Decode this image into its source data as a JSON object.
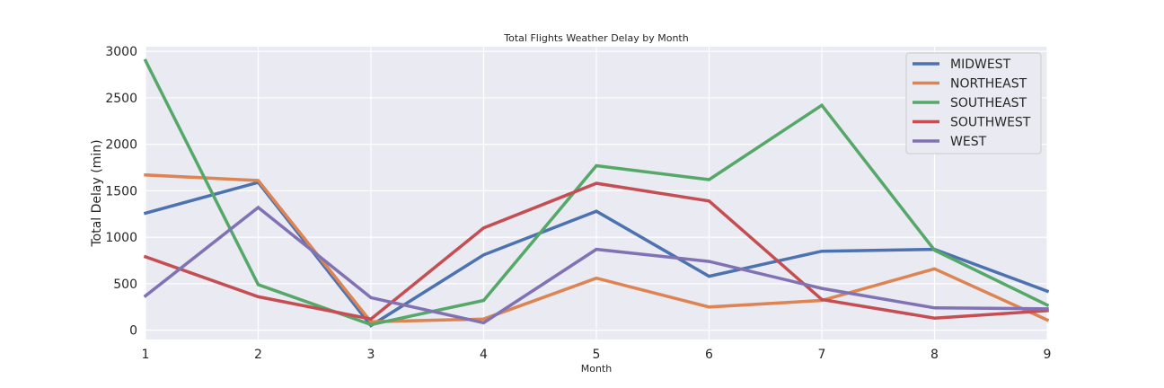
{
  "chart_data": {
    "type": "line",
    "title": "Total Flights Weather Delay by Month",
    "xlabel": "Month",
    "ylabel": "Total Delay (min)",
    "x": [
      1,
      2,
      3,
      4,
      5,
      6,
      7,
      8,
      9
    ],
    "xlim": [
      1,
      9
    ],
    "ylim": [
      -100,
      3050
    ],
    "yticks": [
      0,
      500,
      1000,
      1500,
      2000,
      2500,
      3000
    ],
    "grid": true,
    "legend_position": "top-right",
    "series": [
      {
        "name": "MIDWEST",
        "color": "#4c72b0",
        "values": [
          1260,
          1590,
          50,
          810,
          1280,
          580,
          850,
          870,
          420
        ]
      },
      {
        "name": "NORTHEAST",
        "color": "#dd8452",
        "values": [
          1670,
          1610,
          90,
          120,
          560,
          250,
          320,
          660,
          110
        ]
      },
      {
        "name": "SOUTHEAST",
        "color": "#55a868",
        "values": [
          2900,
          490,
          60,
          320,
          1770,
          1620,
          2420,
          860,
          270
        ]
      },
      {
        "name": "SOUTHWEST",
        "color": "#c44e52",
        "values": [
          790,
          360,
          120,
          1100,
          1580,
          1390,
          330,
          130,
          210
        ]
      },
      {
        "name": "WEST",
        "color": "#8172b3",
        "values": [
          370,
          1320,
          350,
          80,
          870,
          740,
          450,
          240,
          230
        ]
      }
    ]
  }
}
